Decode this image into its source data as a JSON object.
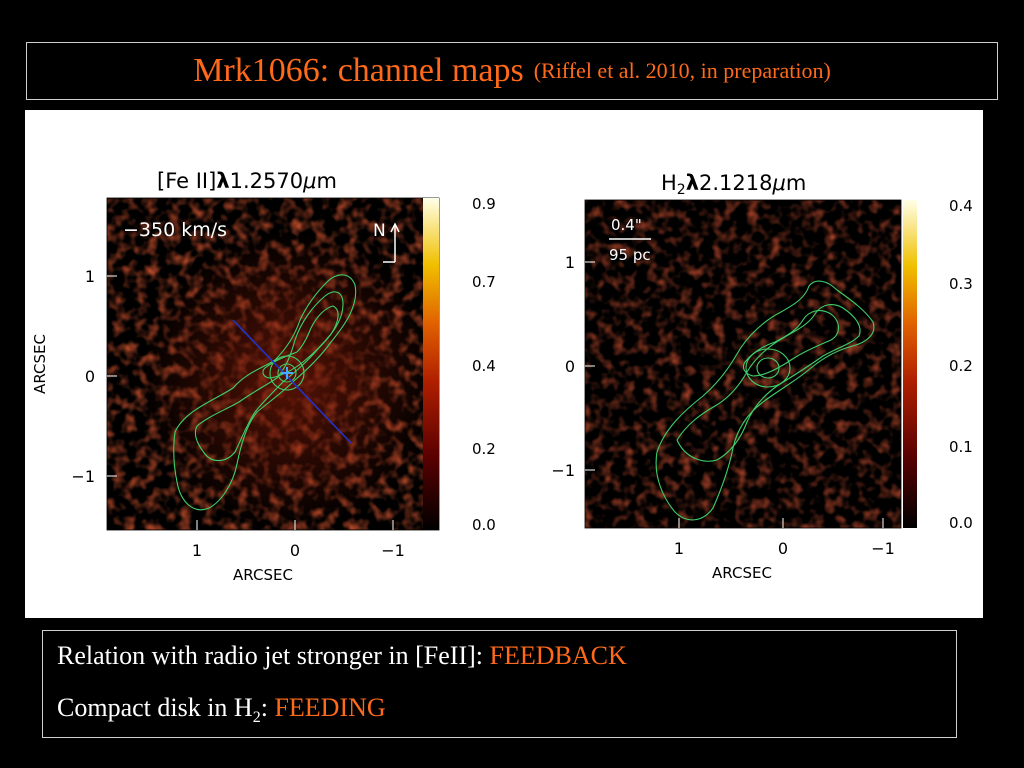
{
  "slide": {
    "title_main": "Mrk1066: channel maps",
    "title_sub": "(Riffel et al. 2010, in preparation)"
  },
  "panels": [
    {
      "title_prefix": "[Fe II]",
      "title_lambda": "λ",
      "title_value": "1.2570",
      "title_unit_mu": "μ",
      "title_unit_m": "m",
      "velocity_label": "−350 km/s",
      "north_label": "N",
      "y_axis_label": "ARCSEC",
      "x_axis_label": "ARCSEC",
      "y_ticks": [
        "1",
        "0",
        "−1"
      ],
      "x_ticks": [
        "1",
        "0",
        "−1"
      ],
      "colorbar_ticks": [
        "0.9",
        "0.7",
        "0.4",
        "0.2",
        "0.0"
      ]
    },
    {
      "title_prefix": "H",
      "title_sub": "2",
      "title_lambda": "λ",
      "title_value": "2.1218",
      "title_unit_mu": "μ",
      "title_unit_m": "m",
      "scale_label": "0.4\"",
      "scale_pc": "95 pc",
      "x_axis_label": "ARCSEC",
      "y_ticks": [
        "1",
        "0",
        "−1"
      ],
      "x_ticks": [
        "1",
        "0",
        "−1"
      ],
      "colorbar_ticks": [
        "0.4",
        "0.3",
        "0.2",
        "0.1",
        "0.0"
      ]
    }
  ],
  "caption": {
    "line1_text": "Relation with radio jet stronger in [FeII]: ",
    "line1_accent": "FEEDBACK",
    "line2_text": "Compact disk in H",
    "line2_sub": "2",
    "line2_colon": ": ",
    "line2_accent": "FEEDING"
  },
  "colors": {
    "accent": "#ff6a1a",
    "contour": "#3fcf6a",
    "radio_jet": "#2233cc",
    "nucleus_marker": "#44aaff"
  }
}
